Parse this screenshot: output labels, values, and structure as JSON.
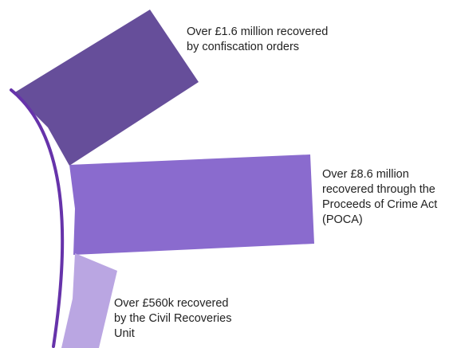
{
  "colors": {
    "arc": "#6633aa",
    "band_1": "#664e9a",
    "band_2": "#8a6bce",
    "band_3": "#baa6e2",
    "text": "#222222",
    "background": "#ffffff"
  },
  "bands": [
    {
      "id": "confiscation",
      "amount": "£1.6 million",
      "label_lines": [
        "Over £1.6 million recovered",
        "by confiscation orders"
      ]
    },
    {
      "id": "poca",
      "amount": "£8.6 million",
      "label_lines": [
        "Over £8.6 million",
        "recovered through the",
        "Proceeds of Crime Act",
        "(POCA)"
      ]
    },
    {
      "id": "civil",
      "amount": "£560k",
      "label_lines": [
        "Over £560k recovered",
        "by the Civil Recoveries",
        "Unit"
      ]
    }
  ]
}
